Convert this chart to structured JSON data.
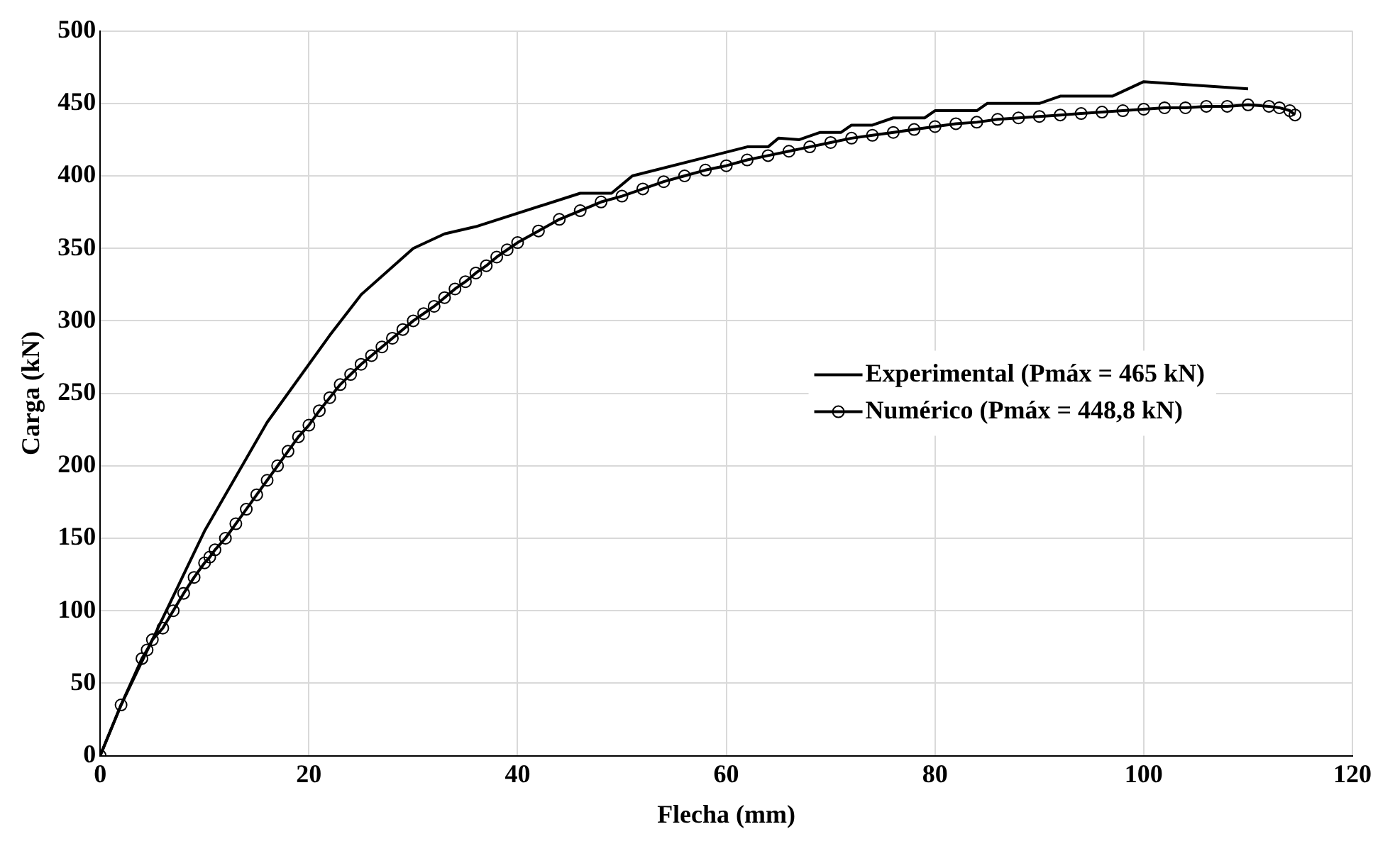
{
  "chart_data": {
    "type": "line",
    "xlabel": "Flecha (mm)",
    "ylabel": "Carga (kN)",
    "xlim": [
      0,
      120
    ],
    "xticks": [
      0,
      20,
      40,
      60,
      80,
      100,
      120
    ],
    "ylim": [
      0,
      500
    ],
    "yticks": [
      0,
      50,
      100,
      150,
      200,
      250,
      300,
      350,
      400,
      450,
      500
    ],
    "grid": true,
    "legend": "center right",
    "series": [
      {
        "name": "Experimental (Pmáx = 465 kN)",
        "color": "#000000",
        "marker": "none",
        "line_style": "solid",
        "x": [
          0,
          2,
          5,
          10,
          16,
          22,
          25,
          30,
          33,
          36,
          46,
          49,
          51,
          62,
          64,
          65,
          67,
          69,
          71,
          72,
          74,
          76,
          79,
          80,
          84,
          85,
          90,
          92,
          97,
          100,
          110
        ],
        "values": [
          0,
          35,
          80,
          155,
          230,
          290,
          318,
          350,
          360,
          365,
          388,
          388,
          400,
          420,
          420,
          426,
          425,
          430,
          430,
          435,
          435,
          440,
          440,
          445,
          445,
          450,
          450,
          455,
          455,
          465,
          460
        ]
      },
      {
        "name": "Numérico (Pmáx = 448,8 kN)",
        "color": "#000000",
        "marker": "circle",
        "line_style": "solid",
        "x": [
          0,
          2,
          4,
          4.5,
          5,
          6,
          7,
          8,
          9,
          10,
          10.5,
          11,
          12,
          13,
          14,
          15,
          16,
          17,
          18,
          19,
          20,
          21,
          22,
          23,
          24,
          25,
          26,
          27,
          28,
          29,
          30,
          31,
          32,
          33,
          34,
          35,
          36,
          37,
          38,
          39,
          40,
          42,
          44,
          46,
          48,
          50,
          52,
          54,
          56,
          58,
          60,
          62,
          64,
          66,
          68,
          70,
          72,
          74,
          76,
          78,
          80,
          82,
          84,
          86,
          88,
          90,
          92,
          94,
          96,
          98,
          100,
          102,
          104,
          106,
          108,
          110,
          112,
          113,
          114,
          114.5
        ],
        "values": [
          0,
          35,
          67,
          73,
          80,
          88,
          100,
          112,
          123,
          133,
          137,
          142,
          150,
          160,
          170,
          180,
          190,
          200,
          210,
          220,
          228,
          238,
          247,
          256,
          263,
          270,
          276,
          282,
          288,
          294,
          300,
          305,
          310,
          316,
          322,
          327,
          333,
          338,
          344,
          349,
          354,
          362,
          370,
          376,
          382,
          386,
          391,
          396,
          400,
          404,
          407,
          411,
          414,
          417,
          420,
          423,
          426,
          428,
          430,
          432,
          434,
          436,
          437,
          439,
          440,
          441,
          442,
          443,
          444,
          445,
          446,
          447,
          447,
          448,
          448,
          449,
          448,
          447,
          445,
          442
        ]
      }
    ]
  }
}
